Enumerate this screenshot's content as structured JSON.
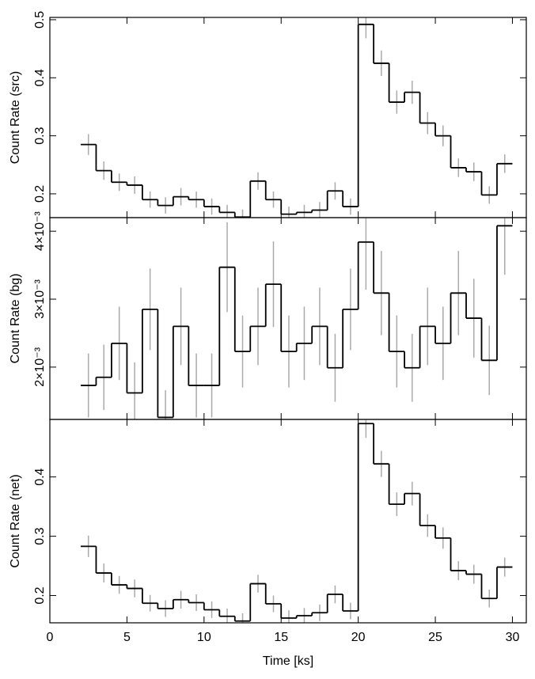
{
  "chart_data": [
    {
      "type": "step",
      "ylabel": "Count Rate (src)",
      "x": [
        2.5,
        3.5,
        4.5,
        5.5,
        6.5,
        7.5,
        8.5,
        9.5,
        10.5,
        11.5,
        12.5,
        13.5,
        14.5,
        15.5,
        16.5,
        17.5,
        18.5,
        19.5,
        20.5,
        21.5,
        22.5,
        23.5,
        24.5,
        25.5,
        26.5,
        27.5,
        28.5,
        29.5
      ],
      "values": [
        0.285,
        0.24,
        0.22,
        0.215,
        0.19,
        0.18,
        0.195,
        0.19,
        0.178,
        0.168,
        0.16,
        0.222,
        0.19,
        0.165,
        0.168,
        0.172,
        0.205,
        0.178,
        0.492,
        0.425,
        0.358,
        0.375,
        0.322,
        0.3,
        0.245,
        0.238,
        0.198,
        0.252
      ],
      "errors": [
        0.018,
        0.016,
        0.015,
        0.015,
        0.014,
        0.014,
        0.015,
        0.014,
        0.014,
        0.013,
        0.013,
        0.015,
        0.014,
        0.013,
        0.013,
        0.014,
        0.015,
        0.014,
        0.024,
        0.022,
        0.02,
        0.02,
        0.019,
        0.018,
        0.016,
        0.016,
        0.015,
        0.016
      ],
      "xlim": [
        0,
        30.9
      ],
      "xticks": [
        0,
        5,
        10,
        15,
        20,
        25,
        30
      ],
      "ylim": [
        0.159,
        0.504
      ],
      "yticks": [
        0.2,
        0.3,
        0.4,
        0.5
      ],
      "line_color": "#000000",
      "error_color": "#aaaaaa"
    },
    {
      "type": "step",
      "ylabel": "Count Rate (bg)",
      "x": [
        2.5,
        3.5,
        4.5,
        5.5,
        6.5,
        7.5,
        8.5,
        9.5,
        10.5,
        11.5,
        12.5,
        13.5,
        14.5,
        15.5,
        16.5,
        17.5,
        18.5,
        19.5,
        20.5,
        21.5,
        22.5,
        23.5,
        24.5,
        25.5,
        26.5,
        27.5,
        28.5,
        29.5
      ],
      "values": [
        0.00173,
        0.00185,
        0.00235,
        0.00162,
        0.00285,
        0.00126,
        0.0026,
        0.00173,
        0.00173,
        0.00347,
        0.00223,
        0.0026,
        0.00322,
        0.00223,
        0.00235,
        0.0026,
        0.00199,
        0.00285,
        0.00384,
        0.00309,
        0.00223,
        0.00199,
        0.0026,
        0.00235,
        0.00309,
        0.00272,
        0.0021,
        0.00408
      ],
      "errors": [
        0.00047,
        0.00048,
        0.00054,
        0.00045,
        0.0006,
        0.0004,
        0.00057,
        0.00047,
        0.00047,
        0.00066,
        0.00053,
        0.00057,
        0.00063,
        0.00053,
        0.00054,
        0.00057,
        0.0005,
        0.0006,
        0.0007,
        0.00062,
        0.00053,
        0.0005,
        0.00057,
        0.00054,
        0.00062,
        0.00058,
        0.00051,
        0.00072
      ],
      "xlim": [
        0,
        30.9
      ],
      "xticks": [
        0,
        5,
        10,
        15,
        20,
        25,
        30
      ],
      "ylim": [
        0.00123,
        0.0042
      ],
      "yticks": [
        {
          "value": 0.002,
          "label": "2×10⁻³"
        },
        {
          "value": 0.003,
          "label": "3×10⁻³"
        },
        {
          "value": 0.004,
          "label": "4×10⁻³"
        }
      ],
      "line_color": "#000000",
      "error_color": "#aaaaaa"
    },
    {
      "type": "step",
      "ylabel": "Count Rate (net)",
      "xlabel": "Time [ks]",
      "x": [
        2.5,
        3.5,
        4.5,
        5.5,
        6.5,
        7.5,
        8.5,
        9.5,
        10.5,
        11.5,
        12.5,
        13.5,
        14.5,
        15.5,
        16.5,
        17.5,
        18.5,
        19.5,
        20.5,
        21.5,
        22.5,
        23.5,
        24.5,
        25.5,
        26.5,
        27.5,
        28.5,
        29.5
      ],
      "values": [
        0.283,
        0.238,
        0.218,
        0.212,
        0.187,
        0.178,
        0.193,
        0.188,
        0.176,
        0.165,
        0.157,
        0.22,
        0.186,
        0.162,
        0.166,
        0.171,
        0.202,
        0.174,
        0.49,
        0.422,
        0.354,
        0.372,
        0.318,
        0.297,
        0.242,
        0.236,
        0.195,
        0.248
      ],
      "errors": [
        0.018,
        0.016,
        0.015,
        0.015,
        0.014,
        0.014,
        0.015,
        0.014,
        0.014,
        0.013,
        0.013,
        0.015,
        0.014,
        0.013,
        0.013,
        0.014,
        0.015,
        0.014,
        0.024,
        0.022,
        0.02,
        0.02,
        0.019,
        0.018,
        0.016,
        0.016,
        0.015,
        0.016
      ],
      "xlim": [
        0,
        30.9
      ],
      "xticks": [
        0,
        5,
        10,
        15,
        20,
        25,
        30
      ],
      "ylim": [
        0.154,
        0.497
      ],
      "yticks": [
        0.2,
        0.3,
        0.4
      ],
      "line_color": "#000000",
      "error_color": "#aaaaaa"
    }
  ]
}
